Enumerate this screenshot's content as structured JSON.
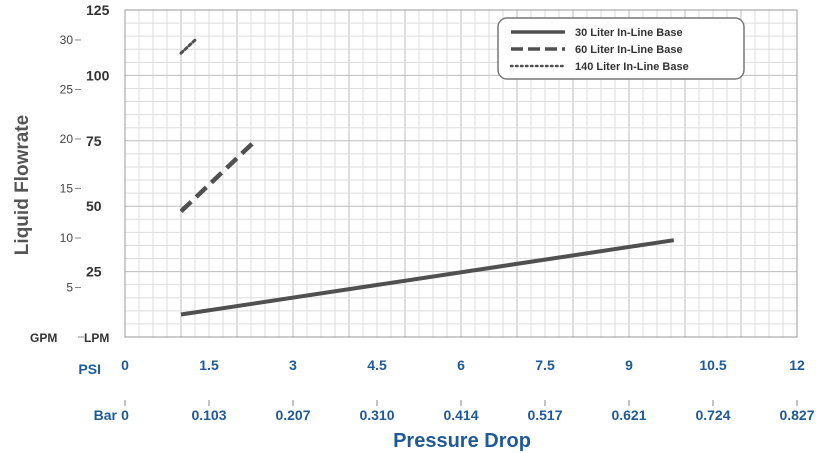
{
  "chart_data": {
    "type": "line",
    "ylabel": "Liquid Flowrate",
    "xlabel": "Pressure Drop",
    "x_unit_psi": "PSI",
    "x_unit_bar": "Bar",
    "y_unit_lpm": "LPM",
    "y_unit_gpm": "GPM",
    "xlim_psi": [
      0,
      12
    ],
    "ylim_lpm": [
      0,
      125
    ],
    "psi_ticks": [
      "0",
      "1.5",
      "3",
      "4.5",
      "6",
      "7.5",
      "9",
      "10.5",
      "12"
    ],
    "bar_ticks": [
      "0",
      "0.103",
      "0.207",
      "0.310",
      "0.414",
      "0.517",
      "0.621",
      "0.724",
      "0.827"
    ],
    "lpm_ticks": [
      "125",
      "100",
      "75",
      "50",
      "25"
    ],
    "gpm_ticks": [
      "30",
      "25",
      "20",
      "15",
      "10",
      "5"
    ],
    "grid": true,
    "legend_position": "top-right",
    "series": [
      {
        "name": "30 Liter In-Line Base",
        "style": "solid",
        "x": [
          1.0,
          9.8
        ],
        "y": [
          8.6,
          37.0
        ]
      },
      {
        "name": "60 Liter In-Line Base",
        "style": "dashed",
        "x": [
          1.0,
          2.35
        ],
        "y": [
          48.0,
          75.5
        ]
      },
      {
        "name": "140 Liter In-Line Base",
        "style": "dotted",
        "x": [
          1.0,
          1.25
        ],
        "y": [
          108.5,
          113.5
        ]
      }
    ],
    "colors": {
      "line": "#505050",
      "grid": "#cccccc",
      "axis_title": "#1f5a96"
    }
  }
}
